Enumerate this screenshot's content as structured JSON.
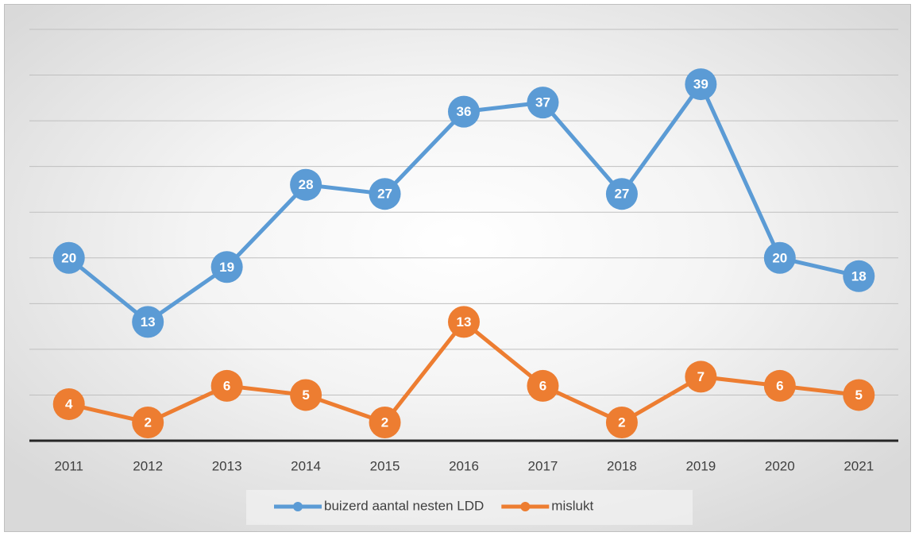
{
  "chart_data": {
    "type": "line",
    "categories": [
      "2011",
      "2012",
      "2013",
      "2014",
      "2015",
      "2016",
      "2017",
      "2018",
      "2019",
      "2020",
      "2021"
    ],
    "series": [
      {
        "name": "buizerd aantal nesten LDD",
        "color": "#5b9bd5",
        "values": [
          20,
          13,
          19,
          28,
          27,
          36,
          37,
          27,
          39,
          20,
          18
        ]
      },
      {
        "name": "mislukt",
        "color": "#ed7d31",
        "values": [
          4,
          2,
          6,
          5,
          2,
          13,
          6,
          2,
          7,
          6,
          5
        ]
      }
    ],
    "ylim": [
      0,
      45
    ],
    "yticks": [
      0,
      5,
      10,
      15,
      20,
      25,
      30,
      35,
      40,
      45
    ],
    "grid": true,
    "legend": "bottom"
  }
}
